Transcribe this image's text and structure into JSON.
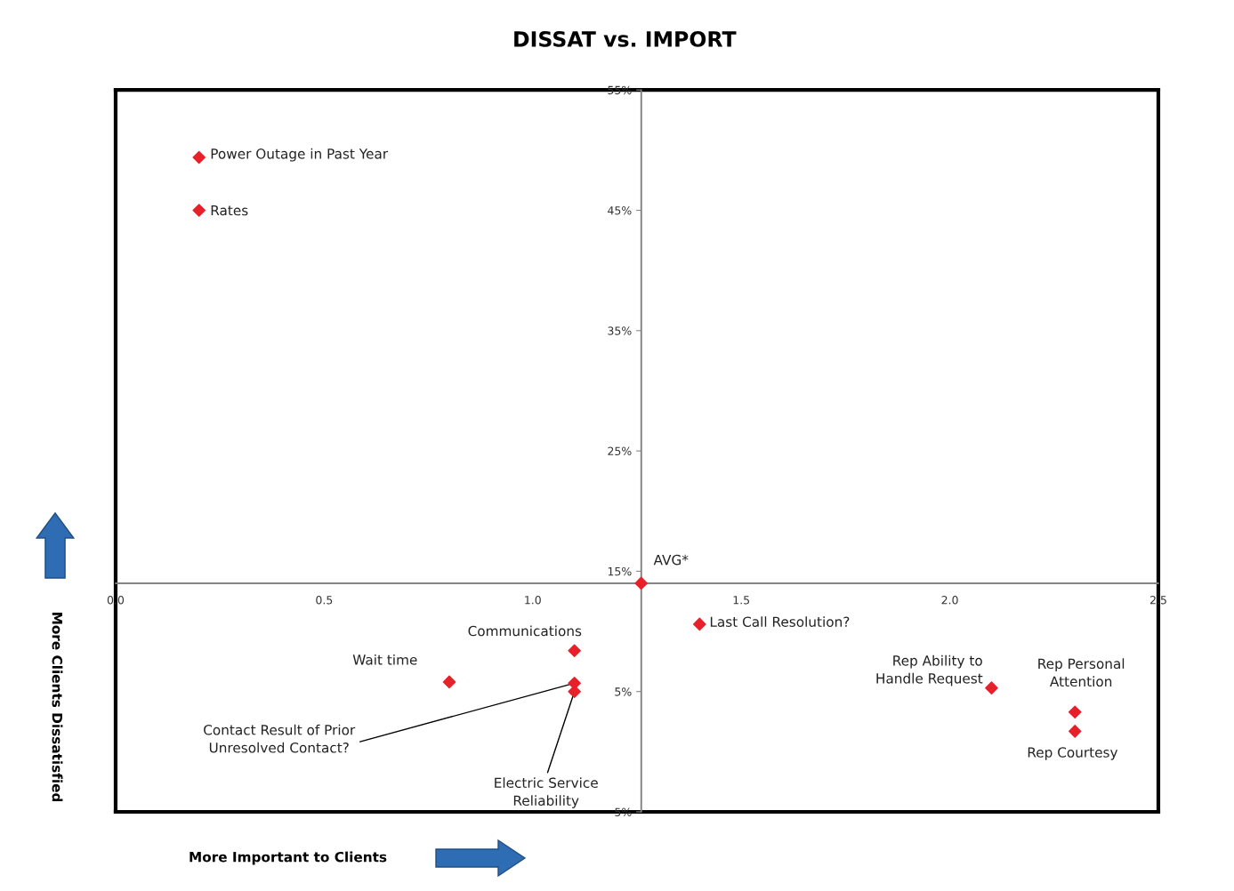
{
  "chart_data": {
    "type": "scatter",
    "title": "DISSAT vs. IMPORT",
    "xlabel": "More Important to Clients",
    "ylabel": "More Clients Dissatisfied",
    "x": [
      0.2,
      0.2,
      1.4,
      1.1,
      0.8,
      1.1,
      1.1,
      2.1,
      2.3,
      2.3,
      1.26
    ],
    "series": [
      {
        "color": "#e8202a",
        "values": [
          49.4,
          45.0,
          10.6,
          8.4,
          5.8,
          5.7,
          5.0,
          5.3,
          3.3,
          1.7,
          14.0
        ]
      }
    ],
    "marker": "diamond",
    "grid": false,
    "legend": false,
    "xlim": [
      0,
      2.5
    ],
    "xticks": [
      {
        "value": 0,
        "label": "0.0"
      },
      0.5,
      {
        "value": 1,
        "label": "1.0"
      },
      1.5,
      {
        "value": 2,
        "label": "2.0"
      },
      2.5
    ],
    "ylim": [
      -5,
      55
    ],
    "yticks": [
      {
        "value": -5,
        "label": "5%"
      },
      {
        "value": 5,
        "label": "5%"
      },
      {
        "value": 15,
        "label": "15%"
      },
      {
        "value": 25,
        "label": "25%"
      },
      {
        "value": 35,
        "label": "35%"
      },
      {
        "value": 45,
        "label": "45%"
      },
      {
        "value": 55,
        "label": "55%"
      }
    ],
    "ref_lines": [
      {
        "axis": "x",
        "value": 1.26,
        "label": null
      },
      {
        "axis": "y",
        "value": 14.0,
        "label": null
      }
    ],
    "annotations": [
      {
        "text": "Power Outage in Past Year",
        "x": 0.2,
        "y": 49.4
      },
      {
        "text": "Rates",
        "x": 0.2,
        "y": 45.0
      },
      {
        "text": "Last Call Resolution?",
        "x": 1.4,
        "y": 10.6
      },
      {
        "text": "Communications",
        "x": 1.1,
        "y": 8.4
      },
      {
        "text": "Wait time",
        "x": 0.8,
        "y": 5.8
      },
      {
        "text": "Contact Result of Prior\nUnresolved Contact?",
        "x": 1.1,
        "y": 5.7
      },
      {
        "text": "Electric Service\nReliability",
        "x": 1.1,
        "y": 5.0
      },
      {
        "text": "Rep Ability to\nHandle Request",
        "x": 2.1,
        "y": 5.3
      },
      {
        "text": "Rep Personal\nAttention",
        "x": 2.3,
        "y": 3.3
      },
      {
        "text": "Rep Courtesy",
        "x": 2.3,
        "y": 1.7
      },
      {
        "text": "AVG*",
        "x": 1.26,
        "y": 14.0
      }
    ]
  }
}
